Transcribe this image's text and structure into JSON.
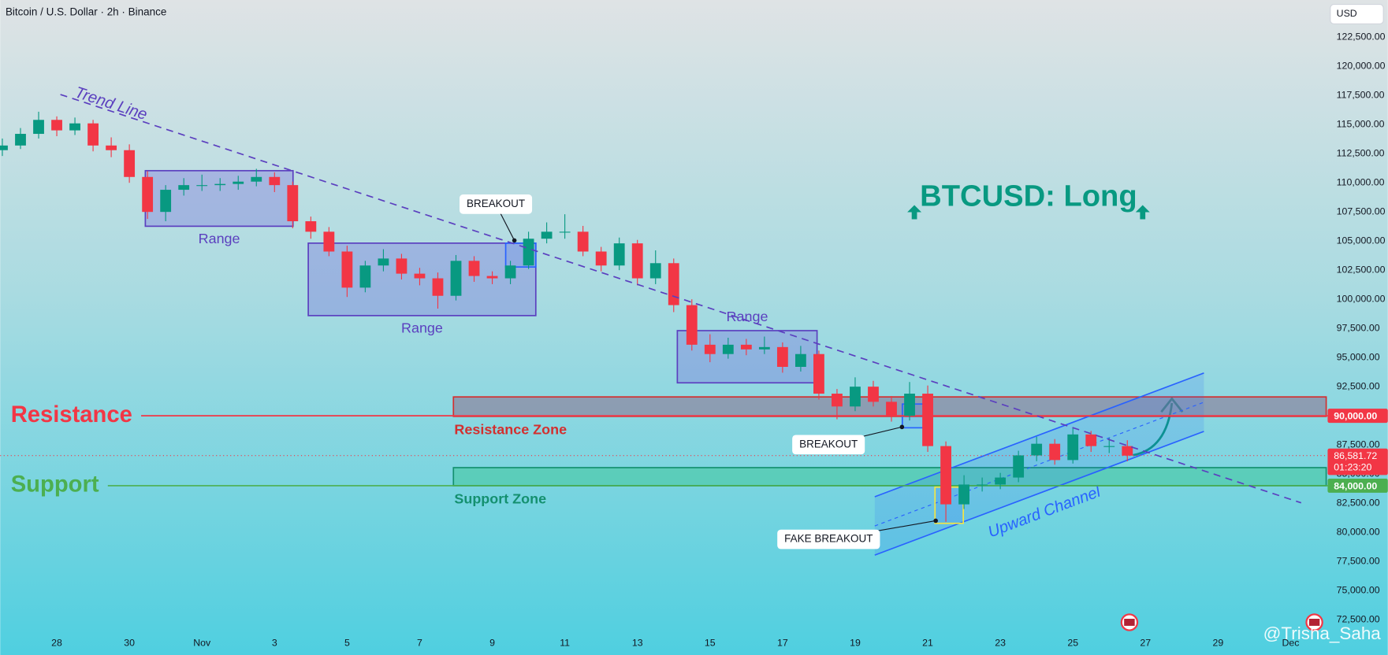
{
  "chart_data": {
    "type": "candlestick",
    "title": "Bitcoin / U.S. Dollar · 2h · Binance",
    "currency": "USD",
    "headline": "BTCUSD: Long",
    "watermark": "@Trisha_Saha",
    "up_color": "#089981",
    "down_color": "#f23645",
    "x": [
      -1.5,
      -1,
      -0.5,
      0,
      0.5,
      1,
      1.5,
      2,
      2.5,
      3,
      3.5,
      4,
      4.5,
      5,
      5.5,
      6,
      6.5,
      7,
      7.5,
      8,
      8.5,
      9,
      9.5,
      10,
      10.5,
      11,
      11.5,
      12,
      12.5,
      13,
      13.5,
      14,
      14.5,
      15,
      15.5,
      16,
      16.5,
      17,
      17.5,
      18,
      18.5,
      19,
      19.5,
      20,
      20.5,
      21,
      21.5,
      22,
      22.5,
      23,
      23.5,
      24,
      24.5,
      25,
      25.5,
      26,
      26.5,
      27,
      27.5,
      28,
      28.5,
      29,
      29.5
    ],
    "open": [
      112800,
      113200,
      114200,
      115400,
      114500,
      115100,
      113200,
      112800,
      110500,
      107500,
      109400,
      109800,
      109800,
      109900,
      110100,
      110500,
      109800,
      106700,
      105800,
      104100,
      101000,
      102900,
      103500,
      102200,
      101800,
      100300,
      103300,
      102000,
      101800,
      102900,
      105200,
      105800,
      105800,
      104100,
      102900,
      104800,
      101800,
      103100,
      99500,
      96100,
      95300,
      96100,
      95700,
      95900,
      94200,
      95300,
      91900,
      90800,
      92500,
      91200,
      90000,
      91900,
      87400,
      82400,
      84100,
      84100,
      84700,
      86600,
      87600,
      86200,
      88400,
      87400,
      87400
    ],
    "high": [
      113800,
      114700,
      116100,
      115700,
      115600,
      115400,
      113900,
      113300,
      111000,
      109800,
      110400,
      110700,
      110400,
      110600,
      111200,
      110900,
      110100,
      107100,
      106200,
      104600,
      103300,
      104300,
      103900,
      102700,
      102300,
      103800,
      103700,
      102400,
      103300,
      105800,
      106600,
      107300,
      106300,
      104500,
      105300,
      105100,
      104200,
      103500,
      100000,
      97000,
      96700,
      96600,
      96800,
      96300,
      96000,
      95600,
      92300,
      93300,
      93000,
      91700,
      92900,
      92600,
      87800,
      84900,
      84700,
      85100,
      87000,
      88200,
      88000,
      89000,
      88700,
      88100,
      87900
    ],
    "low": [
      112300,
      112900,
      113800,
      114000,
      114100,
      112700,
      112200,
      110000,
      106900,
      106700,
      108900,
      109300,
      109300,
      109400,
      109700,
      109200,
      106100,
      105200,
      103700,
      100200,
      100600,
      102400,
      101700,
      101200,
      99200,
      99900,
      101500,
      101300,
      101300,
      102600,
      104800,
      105200,
      103700,
      102400,
      102500,
      101200,
      101300,
      98900,
      95600,
      94600,
      94900,
      95200,
      95300,
      93700,
      93800,
      91400,
      89700,
      90400,
      90800,
      89500,
      89600,
      86900,
      80900,
      82000,
      83500,
      83700,
      84300,
      86100,
      85800,
      85900,
      86900,
      86800,
      86100
    ],
    "close": [
      113200,
      114200,
      115400,
      114500,
      115100,
      113200,
      112800,
      110500,
      107500,
      109400,
      109800,
      109800,
      109900,
      110100,
      110500,
      109800,
      106700,
      105800,
      104100,
      101000,
      102900,
      103500,
      102200,
      101800,
      100300,
      103300,
      102000,
      101800,
      102900,
      105200,
      105800,
      105800,
      104100,
      102900,
      104800,
      101800,
      103100,
      99500,
      96100,
      95300,
      96100,
      95700,
      95900,
      94200,
      95300,
      91900,
      90800,
      92500,
      91200,
      90000,
      91900,
      87400,
      82400,
      84100,
      84100,
      84700,
      86600,
      87600,
      86200,
      88400,
      87400,
      87400,
      86581.72
    ],
    "xlim": [
      -1.56,
      35.02
    ],
    "xticks": [
      {
        "value": 0,
        "label": "28"
      },
      {
        "value": 2,
        "label": "30"
      },
      {
        "value": 4,
        "label": "Nov"
      },
      {
        "value": 6,
        "label": "3"
      },
      {
        "value": 8,
        "label": "5"
      },
      {
        "value": 10,
        "label": "7"
      },
      {
        "value": 12,
        "label": "9"
      },
      {
        "value": 14,
        "label": "11"
      },
      {
        "value": 16,
        "label": "13"
      },
      {
        "value": 18,
        "label": "15"
      },
      {
        "value": 20,
        "label": "17"
      },
      {
        "value": 22,
        "label": "19"
      },
      {
        "value": 24,
        "label": "21"
      },
      {
        "value": 26,
        "label": "23"
      },
      {
        "value": 28,
        "label": "25"
      },
      {
        "value": 30,
        "label": "27"
      },
      {
        "value": 32,
        "label": "29"
      },
      {
        "value": 34,
        "label": "Dec"
      }
    ],
    "ylim": [
      71440,
      125690
    ],
    "yticks": [
      {
        "value": 72500,
        "label": "72,500.00"
      },
      {
        "value": 75000,
        "label": "75,000.00"
      },
      {
        "value": 77500,
        "label": "77,500.00"
      },
      {
        "value": 80000,
        "label": "80,000.00"
      },
      {
        "value": 82500,
        "label": "82,500.00"
      },
      {
        "value": 85000,
        "label": "85,000.00"
      },
      {
        "value": 87500,
        "label": "87,500.00"
      },
      {
        "value": 90000,
        "label": "90,000.00"
      },
      {
        "value": 92500,
        "label": "92,500.00"
      },
      {
        "value": 95000,
        "label": "95,000.00"
      },
      {
        "value": 97500,
        "label": "97,500.00"
      },
      {
        "value": 100000,
        "label": "100,000.00"
      },
      {
        "value": 102500,
        "label": "102,500.00"
      },
      {
        "value": 105000,
        "label": "105,000.00"
      },
      {
        "value": 107500,
        "label": "107,500.00"
      },
      {
        "value": 110000,
        "label": "110,000.00"
      },
      {
        "value": 112500,
        "label": "112,500.00"
      },
      {
        "value": 115000,
        "label": "115,000.00"
      },
      {
        "value": 117500,
        "label": "117,500.00"
      },
      {
        "value": 120000,
        "label": "120,000.00"
      },
      {
        "value": 122500,
        "label": "122,500.00"
      }
    ],
    "last_price": {
      "value": 86581.72,
      "label": "86,581.72"
    },
    "countdown": "01:23:20",
    "levels": [
      {
        "name": "Resistance",
        "value": 90000,
        "label": "90,000.00",
        "color": "#f23645"
      },
      {
        "name": "Support",
        "value": 84000,
        "label": "84,000.00",
        "color": "#4caf50"
      }
    ],
    "zones": [
      {
        "name": "Resistance Zone",
        "from": 10.93,
        "to": 34.98,
        "low": 89950,
        "high": 91620,
        "color": "#d32f2f",
        "fill": "rgba(140,110,140,0.55)"
      },
      {
        "name": "Support Zone",
        "from": 10.93,
        "to": 34.98,
        "low": 84000,
        "high": 85550,
        "color": "#14906f",
        "fill": "rgba(70,200,160,0.6)"
      }
    ],
    "boxes": [
      {
        "label": "Range",
        "from": 2.44,
        "to": 6.51,
        "low": 106270,
        "high": 111040
      },
      {
        "label": "Range",
        "from": 6.93,
        "to": 13.2,
        "low": 98600,
        "high": 104820
      },
      {
        "label": "Range",
        "from": 17.1,
        "to": 20.95,
        "low": 92830,
        "high": 97310
      }
    ],
    "box_color": "#5b3fbf",
    "marker_boxes": [
      {
        "from": 12.37,
        "to": 13.2,
        "low": 102770,
        "high": 104820,
        "color": "#2962ff"
      },
      {
        "from": 23.3,
        "to": 24.05,
        "low": 88970,
        "high": 91010,
        "color": "#2962ff"
      },
      {
        "from": 24.2,
        "to": 24.98,
        "low": 80770,
        "high": 83880,
        "color": "#f5e642"
      }
    ],
    "callouts": [
      {
        "text": "BREAKOUT",
        "x": 12.61,
        "price": 105050
      },
      {
        "text": "BREAKOUT",
        "x": 23.29,
        "price": 89040
      },
      {
        "text": "FAKE BREAKOUT",
        "x": 24.22,
        "price": 80990
      }
    ],
    "trend_line": {
      "label": "Trend Line",
      "color": "#5b3fbf",
      "points": [
        [
          0.1,
          117580
        ],
        [
          34.29,
          82530
        ]
      ]
    },
    "channel": {
      "label": "Upward Channel",
      "color": "#2962ff",
      "upper": [
        [
          22.54,
          83050
        ],
        [
          31.61,
          93670
        ]
      ],
      "lower": [
        [
          22.54,
          78040
        ],
        [
          31.61,
          88660
        ]
      ]
    }
  }
}
